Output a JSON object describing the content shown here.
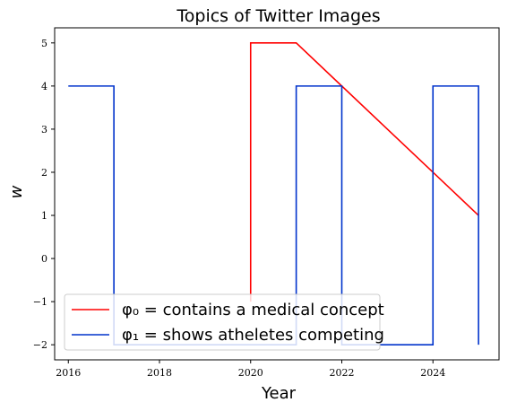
{
  "chart_data": {
    "type": "line",
    "title": "Topics of Twitter Images",
    "xlabel": "Year",
    "ylabel": "w",
    "xlim": [
      2015.7,
      2025.45
    ],
    "ylim": [
      -2.35,
      5.35
    ],
    "xticks": [
      2016,
      2018,
      2020,
      2022,
      2024
    ],
    "yticks": [
      -2,
      -1,
      0,
      1,
      2,
      3,
      4,
      5
    ],
    "ytick_labels": [
      "−2",
      "−1",
      "0",
      "1",
      "2",
      "3",
      "4",
      "5"
    ],
    "grid": false,
    "legend_position": "lower-left",
    "series": [
      {
        "name": "φ₀ = contains a medical concept",
        "color": "#ff0000",
        "points": [
          [
            2020,
            -1
          ],
          [
            2020,
            5
          ],
          [
            2021,
            5
          ],
          [
            2022,
            4
          ],
          [
            2023,
            3
          ],
          [
            2024,
            2
          ],
          [
            2025,
            1
          ]
        ]
      },
      {
        "name": "φ₁ = shows atheletes competing",
        "color": "#0033cc",
        "points": [
          [
            2016,
            4
          ],
          [
            2017,
            4
          ],
          [
            2017,
            -2
          ],
          [
            2021,
            -2
          ],
          [
            2021,
            4
          ],
          [
            2022,
            4
          ],
          [
            2022,
            -2
          ],
          [
            2024,
            -2
          ],
          [
            2024,
            4
          ],
          [
            2025,
            4
          ],
          [
            2025,
            -2
          ]
        ]
      }
    ]
  }
}
